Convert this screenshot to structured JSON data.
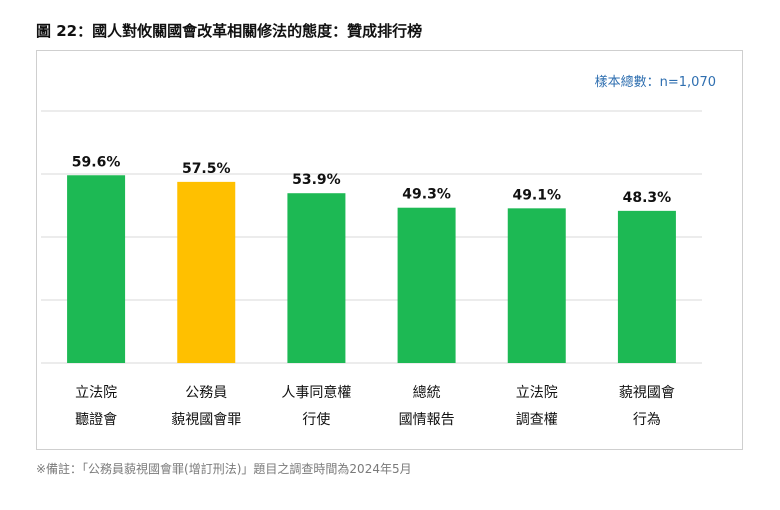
{
  "figure": {
    "title": "圖 22：國人對攸關國會改革相關修法的態度：贊成排行榜",
    "sample_note": "樣本總數：n=1,070",
    "footnote": "※備註：「公務員藐視國會罪(增訂刑法)」題目之調查時間為2024年5月"
  },
  "colors": {
    "standard_bar": "#1db954",
    "highlight_bar": "#ffc000",
    "gridline": "#d9d9d9"
  },
  "chart_data": {
    "type": "bar",
    "categories": [
      [
        "立法院",
        "聽證會"
      ],
      [
        "公務員",
        "藐視國會罪"
      ],
      [
        "人事同意權",
        "行使"
      ],
      [
        "總統",
        "國情報告"
      ],
      [
        "立法院",
        "調查權"
      ],
      [
        "藐視國會",
        "行為"
      ]
    ],
    "values": [
      59.6,
      57.5,
      53.9,
      49.3,
      49.1,
      48.3
    ],
    "value_labels": [
      "59.6%",
      "57.5%",
      "53.9%",
      "49.3%",
      "49.1%",
      "48.3%"
    ],
    "highlight_index": 1,
    "ylim": [
      0,
      80
    ],
    "grid": true,
    "title": "",
    "xlabel": "",
    "ylabel": ""
  }
}
